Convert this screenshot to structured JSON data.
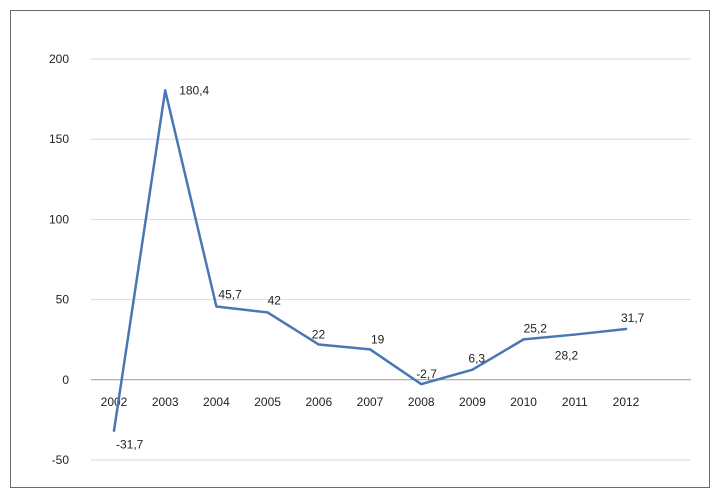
{
  "chart_data": {
    "type": "line",
    "categories": [
      "2002",
      "2003",
      "2004",
      "2005",
      "2006",
      "2007",
      "2008",
      "2009",
      "2010",
      "2011",
      "2012"
    ],
    "series": [
      {
        "values": [
          -31.7,
          180.4,
          45.7,
          42,
          22,
          19,
          -2.7,
          6.3,
          25.2,
          28.2,
          31.7
        ],
        "color": "#4a77b4"
      }
    ],
    "data_labels": [
      "-31,7",
      "180,4",
      "45,7",
      "42",
      "22",
      "19",
      "-2,7",
      "6,3",
      "25,2",
      "28,2",
      "31,7"
    ],
    "y_ticks": [
      -50,
      0,
      50,
      100,
      150,
      200
    ],
    "ylim": [
      -50,
      200
    ],
    "grid": true,
    "gridline_color": "#d9d9d9",
    "legend": false
  }
}
